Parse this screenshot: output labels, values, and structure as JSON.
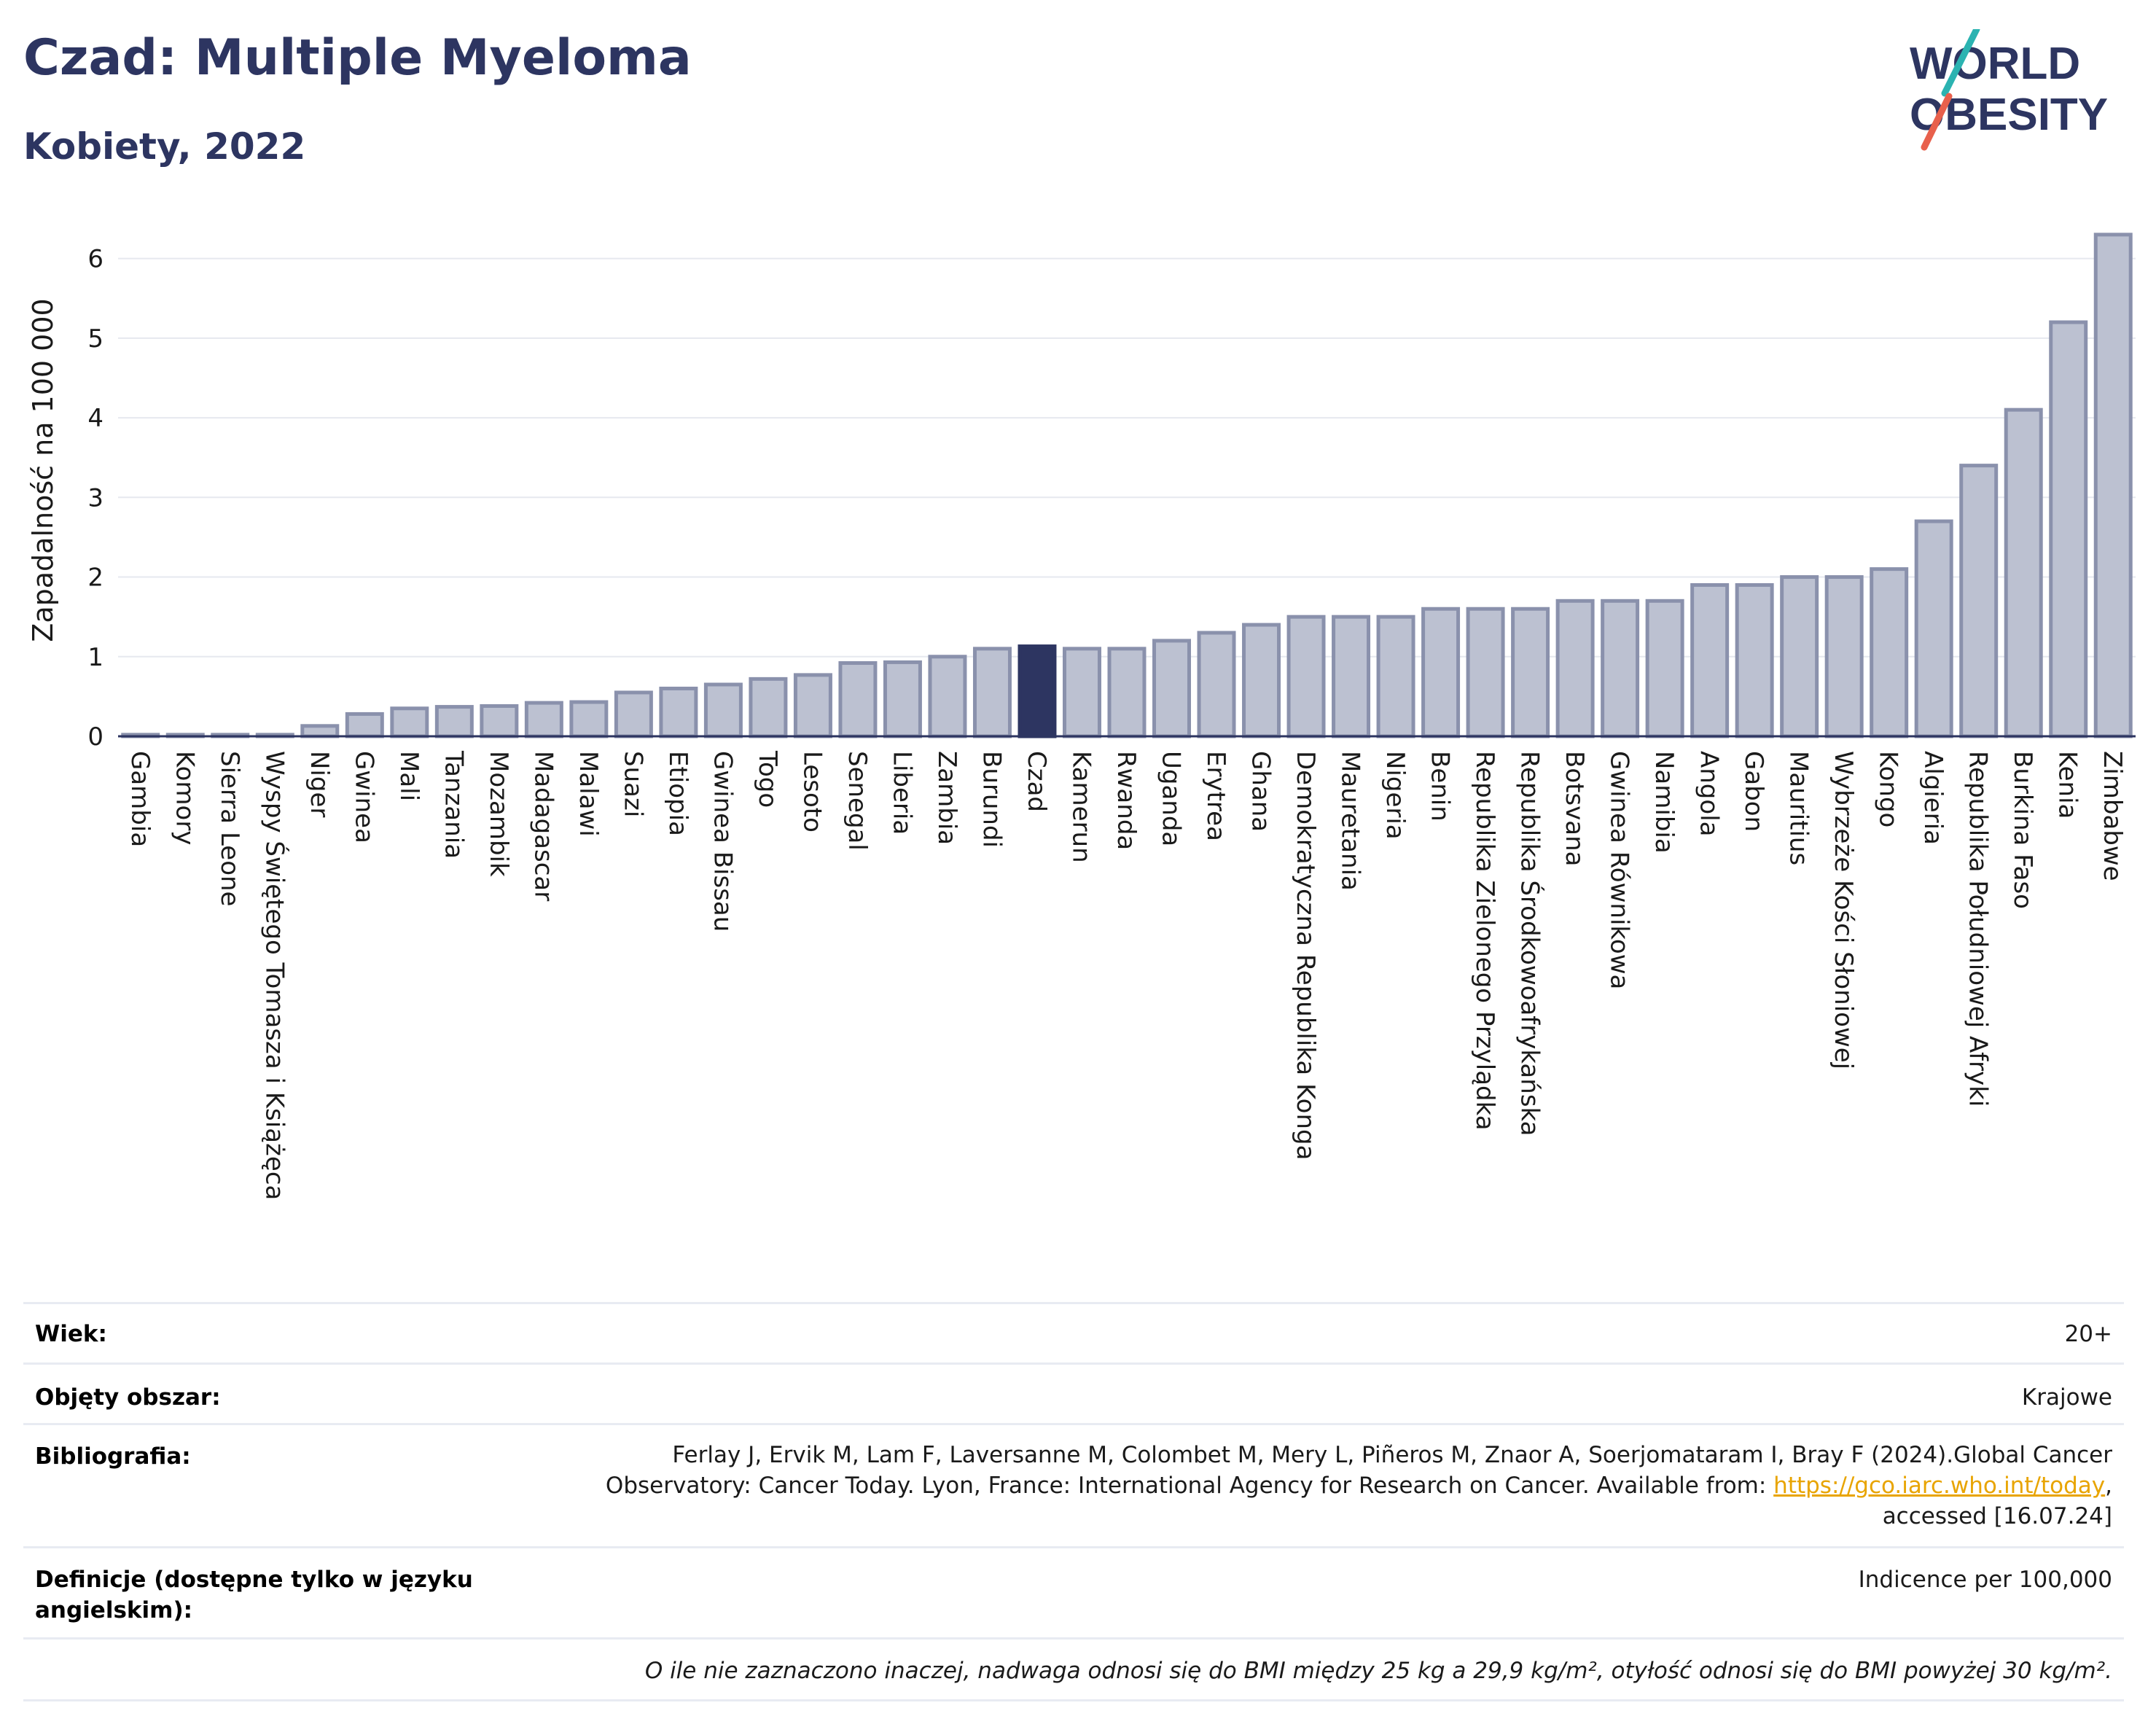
{
  "header": {
    "title": "Czad: Multiple Myeloma",
    "subtitle": "Kobiety, 2022"
  },
  "logo": {
    "line1": "WORLD",
    "line2": "OBESITY"
  },
  "chart_data": {
    "type": "bar",
    "ylabel": "Zapadalność na 100 000",
    "ylim": [
      0,
      6.5
    ],
    "yticks": [
      0,
      1,
      2,
      3,
      4,
      5,
      6
    ],
    "grid": true,
    "highlight": "Czad",
    "colors": {
      "bar": "#bcc1d1",
      "bar_edge": "#8a91ac",
      "highlight": "#2d3561",
      "axis": "#2d3561",
      "grid": "#e6e8ef"
    },
    "categories": [
      "Gambia",
      "Komory",
      "Sierra Leone",
      "Wyspy Świętego Tomasza i Książęca",
      "Niger",
      "Gwinea",
      "Mali",
      "Tanzania",
      "Mozambik",
      "Madagascar",
      "Malawi",
      "Suazi",
      "Etiopia",
      "Gwinea Bissau",
      "Togo",
      "Lesoto",
      "Senegal",
      "Liberia",
      "Zambia",
      "Burundi",
      "Czad",
      "Kamerun",
      "Rwanda",
      "Uganda",
      "Erytrea",
      "Ghana",
      "Demokratyczna Republika Konga",
      "Mauretania",
      "Nigeria",
      "Benin",
      "Republika Zielonego Przylądka",
      "Republika Środkowoafrykańska",
      "Botsvana",
      "Gwinea Równikowa",
      "Namibia",
      "Angola",
      "Gabon",
      "Mauritius",
      "Wybrzeże Kości Słoniowej",
      "Kongo",
      "Algieria",
      "Republika Południowej Afryki",
      "Burkina Faso",
      "Kenia",
      "Zimbabwe"
    ],
    "values": [
      0.02,
      0.02,
      0.02,
      0.02,
      0.13,
      0.28,
      0.35,
      0.37,
      0.38,
      0.42,
      0.43,
      0.55,
      0.6,
      0.65,
      0.72,
      0.77,
      0.92,
      0.93,
      1.0,
      1.1,
      1.13,
      1.1,
      1.1,
      1.2,
      1.3,
      1.4,
      1.5,
      1.5,
      1.5,
      1.6,
      1.6,
      1.6,
      1.7,
      1.7,
      1.7,
      1.9,
      1.9,
      2.0,
      2.0,
      2.1,
      2.7,
      3.4,
      4.1,
      5.2,
      6.3
    ]
  },
  "info": {
    "age_label": "Wiek:",
    "age_value": "20+",
    "area_label": "Objęty obszar:",
    "area_value": "Krajowe",
    "bib_label": "Bibliografia:",
    "bib_line1": "Ferlay J, Ervik M, Lam F, Laversanne M, Colombet M, Mery L, Piñeros M, Znaor A, Soerjomataram I, Bray F (2024).Global Cancer",
    "bib_line2_pre": "Observatory: Cancer Today. Lyon, France: International Agency for Research on Cancer. Available from: ",
    "bib_link": "https://gco.iarc.who.int/today",
    "bib_line2_post": ",",
    "bib_line3": "accessed [16.07.24]",
    "def_label_1": "Definicje (dostępne tylko w języku",
    "def_label_2": "angielskim):",
    "def_value": "Indicence per 100,000",
    "note": "O ile nie zaznaczono inaczej, nadwaga odnosi się do BMI między 25 kg a 29,9 kg/m², otyłość odnosi się do BMI powyżej 30 kg/m²."
  }
}
